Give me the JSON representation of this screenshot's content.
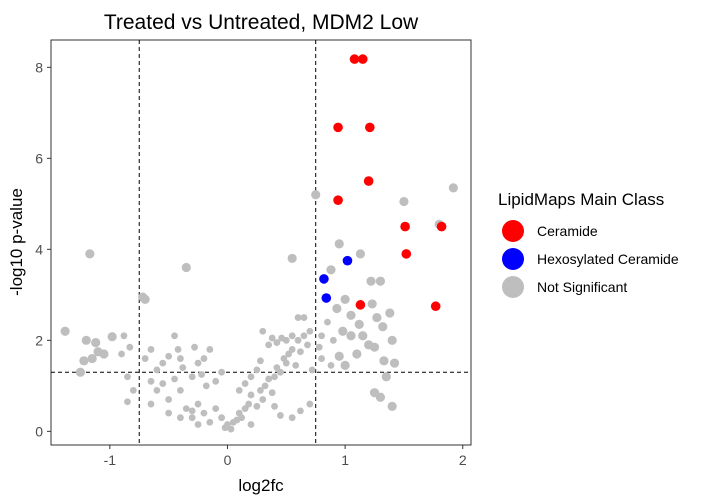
{
  "chart_data": {
    "type": "scatter",
    "title": "Treated vs Untreated, MDM2 Low",
    "xlabel": "log2fc",
    "ylabel": "-log10 p-value",
    "xlim": [
      -1.5,
      2.07
    ],
    "ylim": [
      -0.3,
      8.6
    ],
    "x_ticks": [
      -1,
      0,
      1,
      2
    ],
    "y_ticks": [
      0,
      2,
      4,
      6,
      8
    ],
    "x_tick_labels": [
      "-1",
      "0",
      "1",
      "2"
    ],
    "y_tick_labels": [
      "0",
      "2",
      "4",
      "6",
      "8"
    ],
    "grid": false,
    "reference_lines": {
      "vertical": [
        -0.75,
        0.75
      ],
      "horizontal": [
        1.3
      ],
      "style": "dashed"
    },
    "legend": {
      "title": "LipidMaps Main Class",
      "position": "right",
      "entries": [
        {
          "label": "Ceramide",
          "color": "#ff0000"
        },
        {
          "label": "Hexosylated Ceramide",
          "color": "#0000ff"
        },
        {
          "label": "Not Significant",
          "color": "#bebebe"
        }
      ]
    },
    "series": [
      {
        "name": "Ceramide",
        "color": "#ff0000",
        "points": [
          [
            1.08,
            8.18
          ],
          [
            1.15,
            8.18
          ],
          [
            0.94,
            6.68
          ],
          [
            1.21,
            6.68
          ],
          [
            1.2,
            5.5
          ],
          [
            0.94,
            5.08
          ],
          [
            1.51,
            4.5
          ],
          [
            1.82,
            4.5
          ],
          [
            1.52,
            3.9
          ],
          [
            1.77,
            2.75
          ],
          [
            1.13,
            2.78
          ]
        ]
      },
      {
        "name": "Hexosylated Ceramide",
        "color": "#0000ff",
        "points": [
          [
            0.82,
            3.35
          ],
          [
            1.02,
            3.75
          ],
          [
            0.84,
            2.93
          ]
        ]
      },
      {
        "name": "Not Significant",
        "color": "#bebebe",
        "points": [
          [
            1.92,
            5.35
          ],
          [
            1.5,
            5.05
          ],
          [
            1.8,
            4.55
          ],
          [
            0.95,
            4.12
          ],
          [
            1.13,
            3.9
          ],
          [
            1.22,
            3.3
          ],
          [
            1.0,
            2.9
          ],
          [
            1.27,
            2.5
          ],
          [
            1.38,
            2.6
          ],
          [
            1.32,
            2.3
          ],
          [
            1.12,
            2.35
          ],
          [
            1.05,
            2.1
          ],
          [
            0.98,
            2.2
          ],
          [
            1.1,
            1.7
          ],
          [
            1.2,
            1.9
          ],
          [
            0.85,
            2.4
          ],
          [
            0.9,
            2.0
          ],
          [
            0.8,
            1.6
          ],
          [
            0.78,
            1.85
          ],
          [
            1.15,
            2.1
          ],
          [
            1.25,
            1.85
          ],
          [
            0.95,
            1.65
          ],
          [
            1.33,
            1.55
          ],
          [
            1.0,
            1.45
          ],
          [
            0.88,
            1.45
          ],
          [
            1.3,
            3.3
          ],
          [
            1.4,
            2.0
          ],
          [
            1.23,
            2.8
          ],
          [
            0.93,
            2.7
          ],
          [
            1.05,
            2.55
          ],
          [
            0.75,
            5.2
          ],
          [
            0.88,
            3.55
          ],
          [
            0.8,
            2.1
          ],
          [
            0.55,
            3.8
          ],
          [
            1.42,
            1.5
          ],
          [
            1.35,
            1.2
          ],
          [
            1.4,
            0.55
          ],
          [
            1.3,
            0.75
          ],
          [
            1.25,
            0.85
          ],
          [
            -1.17,
            3.9
          ],
          [
            -1.38,
            2.2
          ],
          [
            -0.98,
            2.08
          ],
          [
            -1.2,
            2.0
          ],
          [
            -1.12,
            1.95
          ],
          [
            -1.1,
            1.75
          ],
          [
            -1.05,
            1.7
          ],
          [
            -0.88,
            2.1
          ],
          [
            -0.9,
            1.7
          ],
          [
            -0.83,
            1.85
          ],
          [
            -1.22,
            1.55
          ],
          [
            -1.25,
            1.3
          ],
          [
            -1.15,
            1.6
          ],
          [
            -0.85,
            1.2
          ],
          [
            -0.8,
            0.9
          ],
          [
            -0.7,
            2.9
          ],
          [
            -0.72,
            2.95
          ],
          [
            -0.35,
            3.6
          ],
          [
            -0.85,
            0.65
          ],
          [
            -0.6,
            1.35
          ],
          [
            -0.55,
            1.5
          ],
          [
            -0.5,
            1.65
          ],
          [
            -0.45,
            2.1
          ],
          [
            -0.42,
            1.8
          ],
          [
            -0.38,
            1.4
          ],
          [
            -0.3,
            1.2
          ],
          [
            -0.25,
            1.5
          ],
          [
            -0.2,
            1.6
          ],
          [
            -0.15,
            1.8
          ],
          [
            -0.18,
            1.0
          ],
          [
            -0.1,
            1.1
          ],
          [
            -0.05,
            1.3
          ],
          [
            -0.5,
            0.7
          ],
          [
            -0.4,
            0.9
          ],
          [
            -0.35,
            0.5
          ],
          [
            -0.3,
            0.3
          ],
          [
            -0.25,
            0.6
          ],
          [
            -0.2,
            0.4
          ],
          [
            -0.15,
            0.2
          ],
          [
            -0.1,
            0.5
          ],
          [
            -0.05,
            0.3
          ],
          [
            0.0,
            0.15
          ],
          [
            0.03,
            0.05
          ],
          [
            0.05,
            0.2
          ],
          [
            -0.02,
            0.08
          ],
          [
            0.08,
            0.25
          ],
          [
            0.1,
            0.4
          ],
          [
            0.12,
            0.3
          ],
          [
            0.15,
            0.5
          ],
          [
            0.18,
            0.6
          ],
          [
            0.2,
            0.8
          ],
          [
            0.25,
            0.55
          ],
          [
            0.28,
            0.9
          ],
          [
            0.3,
            0.7
          ],
          [
            0.32,
            1.0
          ],
          [
            0.35,
            1.15
          ],
          [
            0.38,
            0.85
          ],
          [
            0.4,
            1.2
          ],
          [
            0.42,
            1.4
          ],
          [
            0.45,
            1.3
          ],
          [
            0.48,
            1.6
          ],
          [
            0.5,
            1.5
          ],
          [
            0.52,
            1.7
          ],
          [
            0.55,
            1.8
          ],
          [
            0.58,
            1.45
          ],
          [
            0.6,
            2.0
          ],
          [
            0.62,
            1.75
          ],
          [
            0.65,
            2.1
          ],
          [
            0.68,
            1.9
          ],
          [
            0.7,
            2.2
          ],
          [
            0.72,
            1.35
          ],
          [
            0.35,
            1.9
          ],
          [
            0.3,
            2.2
          ],
          [
            0.38,
            2.05
          ],
          [
            0.42,
            1.95
          ],
          [
            0.46,
            2.05
          ],
          [
            0.5,
            2.0
          ],
          [
            0.55,
            2.1
          ],
          [
            0.6,
            2.5
          ],
          [
            0.65,
            2.5
          ],
          [
            0.2,
            1.2
          ],
          [
            0.15,
            1.05
          ],
          [
            0.1,
            0.9
          ],
          [
            0.25,
            1.35
          ],
          [
            0.28,
            1.55
          ],
          [
            0.7,
            0.6
          ],
          [
            0.62,
            0.45
          ],
          [
            0.55,
            0.3
          ],
          [
            0.45,
            0.35
          ],
          [
            0.4,
            0.55
          ],
          [
            -0.6,
            0.9
          ],
          [
            -0.65,
            1.1
          ],
          [
            -0.55,
            1.05
          ],
          [
            -0.45,
            1.15
          ],
          [
            -0.65,
            0.6
          ],
          [
            -0.5,
            0.4
          ],
          [
            -0.4,
            0.3
          ],
          [
            -0.3,
            0.45
          ],
          [
            -0.25,
            0.15
          ],
          [
            0.2,
            0.15
          ],
          [
            -0.7,
            1.6
          ],
          [
            -0.65,
            1.8
          ],
          [
            -0.4,
            1.6
          ],
          [
            -0.28,
            1.85
          ],
          [
            -0.22,
            1.25
          ]
        ]
      }
    ]
  }
}
